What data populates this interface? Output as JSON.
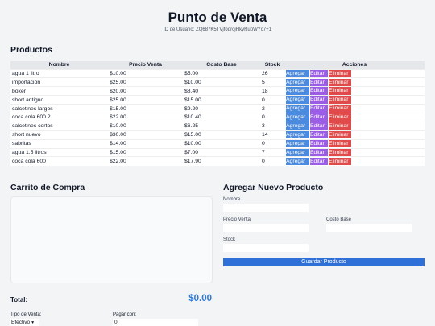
{
  "header": {
    "title": "Punto de Venta",
    "user_id": "ID de Usuario: ZQ687K5TVjfoqrojHkyRupWYc7+1"
  },
  "products": {
    "heading": "Productos",
    "columns": [
      "Nombre",
      "Precio Venta",
      "Costo Base",
      "Stock",
      "Acciones"
    ],
    "action_labels": {
      "add": "Agregar",
      "edit": "Editar",
      "delete": "Eliminar"
    },
    "rows": [
      {
        "name": "agua 1 litro",
        "price": "$10.00",
        "cost": "$5.00",
        "stock": "26"
      },
      {
        "name": "importacion",
        "price": "$25.00",
        "cost": "$10.00",
        "stock": "5"
      },
      {
        "name": "boxer",
        "price": "$20.00",
        "cost": "$8.40",
        "stock": "18"
      },
      {
        "name": "short antiguo",
        "price": "$25.00",
        "cost": "$15.00",
        "stock": "0"
      },
      {
        "name": "calcetines largos",
        "price": "$15.00",
        "cost": "$9.20",
        "stock": "2"
      },
      {
        "name": "coca cola 600 2",
        "price": "$22.00",
        "cost": "$10.40",
        "stock": "0"
      },
      {
        "name": "calcetines cortos",
        "price": "$10.00",
        "cost": "$6.25",
        "stock": "3"
      },
      {
        "name": "short nuevo",
        "price": "$30.00",
        "cost": "$15.00",
        "stock": "14"
      },
      {
        "name": "sabritas",
        "price": "$14.00",
        "cost": "$10.00",
        "stock": "0"
      },
      {
        "name": "agua 1.5 litros",
        "price": "$15.00",
        "cost": "$7.00",
        "stock": "7"
      },
      {
        "name": "coca cola 600",
        "price": "$22.00",
        "cost": "$17.90",
        "stock": "0"
      }
    ]
  },
  "cart": {
    "heading": "Carrito de Compra",
    "total_label": "Total:",
    "total_value": "$0.00",
    "sale_type_label": "Tipo de Venta:",
    "sale_type_value": "Efectivo",
    "pay_label": "Pagar con:",
    "pay_value": "0"
  },
  "new_product": {
    "heading": "Agregar Nuevo Producto",
    "name_label": "Nombre",
    "price_label": "Precio Venta",
    "cost_label": "Costo Base",
    "stock_label": "Stock",
    "save_label": "Guardar Producto"
  },
  "colors": {
    "add": "#4a8be0",
    "edit": "#9b5de5",
    "delete": "#e14a4a",
    "primary": "#2f6fd8",
    "total": "#2f7ad9"
  }
}
